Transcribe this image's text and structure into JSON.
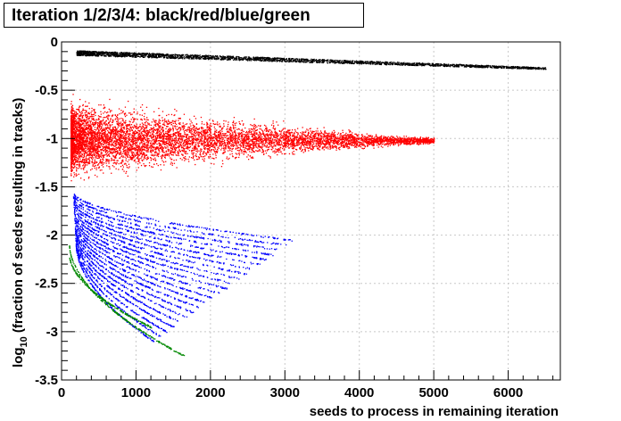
{
  "chart_data": {
    "type": "scatter",
    "title": "Iteration 1/2/3/4: black/red/blue/green",
    "xlabel": "seeds to process in remaining iteration",
    "ylabel_prefix": "log",
    "ylabel_sub": "10",
    "ylabel_rest": " (fraction of seeds resulting in tracks)",
    "xlim": [
      0,
      6700
    ],
    "ylim": [
      -3.5,
      0
    ],
    "x_ticks": [
      "0",
      "1000",
      "2000",
      "3000",
      "4000",
      "5000",
      "6000"
    ],
    "x_tick_values": [
      0,
      1000,
      2000,
      3000,
      4000,
      5000,
      6000
    ],
    "y_ticks": [
      "0",
      "-0.5",
      "-1",
      "-1.5",
      "-2",
      "-2.5",
      "-3",
      "-3.5"
    ],
    "y_tick_values": [
      0,
      -0.5,
      -1,
      -1.5,
      -2,
      -2.5,
      -3,
      -3.5
    ],
    "grid": true,
    "series": [
      {
        "color": "#000000",
        "x_range": [
          200,
          6500
        ],
        "y_start": -0.11,
        "y_end": -0.27,
        "spread_start": 0.05,
        "spread_end": 0.02,
        "count": 2600
      },
      {
        "color": "#ff0000",
        "x_range": [
          120,
          5000
        ],
        "y_start": -1.0,
        "y_end": -1.02,
        "spread_start": 0.3,
        "spread_end": 0.03,
        "count": 7500
      },
      {
        "color": "#0000ff",
        "x_range": [
          150,
          3100
        ],
        "band_top_start": -1.55,
        "band_top_end": -2.1,
        "band_bottom_start": -2.1,
        "band_bottom_end": -3.0,
        "count": 3600
      },
      {
        "color": "#008800",
        "x_range": [
          100,
          1650
        ],
        "y_start": -2.1,
        "y_end": -3.25,
        "count": 500
      }
    ]
  }
}
